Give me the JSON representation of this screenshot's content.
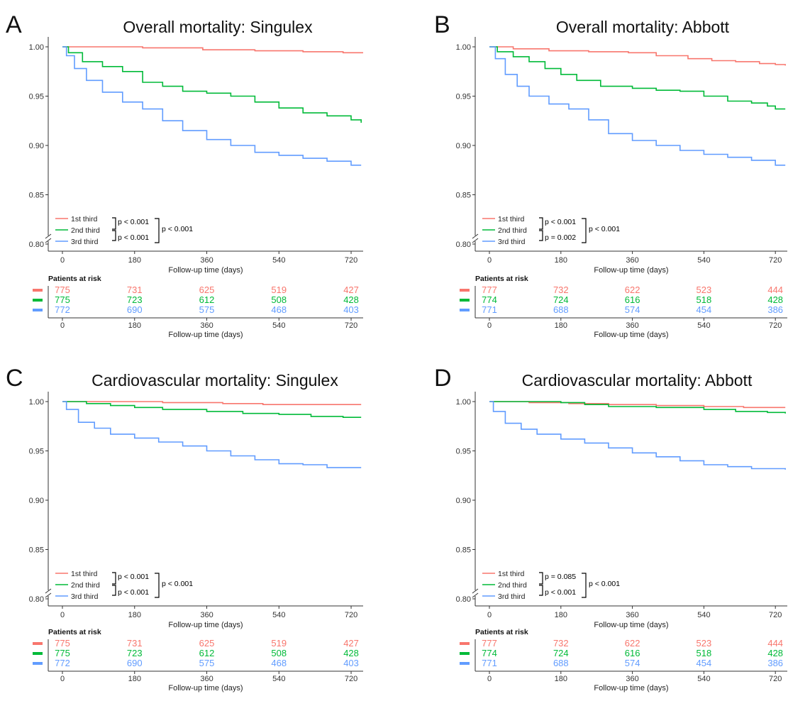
{
  "colors": {
    "first": "#F8766D",
    "second": "#00BA38",
    "third": "#619CFF",
    "axis": "#333333",
    "bracket": "#000000"
  },
  "common": {
    "xlabel": "Follow-up time (days)",
    "risk_title": "Patients at risk",
    "legend": [
      "1st third",
      "2nd third",
      "3rd third"
    ],
    "x_ticks": [
      "0",
      "180",
      "360",
      "540",
      "720"
    ],
    "y_ticks": [
      "1.00",
      "0.95",
      "0.90",
      "0.85",
      "0.80"
    ]
  },
  "chart_data": [
    {
      "panel": "A",
      "title": "Overall mortality: Singulex",
      "type": "line",
      "xlabel": "Follow-up time (days)",
      "xlim": [
        0,
        750
      ],
      "ylim": [
        0.8,
        1.0
      ],
      "y_axis_break": true,
      "p_values": {
        "first_vs_second": "p < 0.001",
        "second_vs_third": "p < 0.001",
        "first_vs_third": "p < 0.001"
      },
      "series": [
        {
          "name": "1st third",
          "color": "#F8766D",
          "points": [
            [
              0,
              1.0
            ],
            [
              80,
              1.0
            ],
            [
              200,
              0.999
            ],
            [
              350,
              0.997
            ],
            [
              480,
              0.996
            ],
            [
              600,
              0.995
            ],
            [
              700,
              0.994
            ],
            [
              750,
              0.994
            ]
          ]
        },
        {
          "name": "2nd third",
          "color": "#00BA38",
          "points": [
            [
              0,
              1.0
            ],
            [
              15,
              0.994
            ],
            [
              50,
              0.985
            ],
            [
              100,
              0.98
            ],
            [
              150,
              0.975
            ],
            [
              200,
              0.964
            ],
            [
              250,
              0.96
            ],
            [
              300,
              0.955
            ],
            [
              360,
              0.953
            ],
            [
              420,
              0.95
            ],
            [
              480,
              0.944
            ],
            [
              540,
              0.938
            ],
            [
              600,
              0.933
            ],
            [
              660,
              0.93
            ],
            [
              720,
              0.926
            ],
            [
              745,
              0.923
            ]
          ]
        },
        {
          "name": "3rd third",
          "color": "#619CFF",
          "points": [
            [
              0,
              1.0
            ],
            [
              10,
              0.991
            ],
            [
              30,
              0.978
            ],
            [
              60,
              0.966
            ],
            [
              100,
              0.954
            ],
            [
              150,
              0.944
            ],
            [
              200,
              0.937
            ],
            [
              250,
              0.925
            ],
            [
              300,
              0.915
            ],
            [
              360,
              0.906
            ],
            [
              420,
              0.9
            ],
            [
              480,
              0.893
            ],
            [
              540,
              0.89
            ],
            [
              600,
              0.887
            ],
            [
              660,
              0.884
            ],
            [
              720,
              0.88
            ],
            [
              745,
              0.88
            ]
          ]
        }
      ],
      "risk_table": [
        {
          "name": "1st third",
          "values": [
            775,
            731,
            625,
            519,
            427
          ]
        },
        {
          "name": "2nd third",
          "values": [
            775,
            723,
            612,
            508,
            428
          ]
        },
        {
          "name": "3rd third",
          "values": [
            772,
            690,
            575,
            468,
            403
          ]
        }
      ]
    },
    {
      "panel": "B",
      "title": "Overall mortality: Abbott",
      "type": "line",
      "xlabel": "Follow-up time (days)",
      "xlim": [
        0,
        750
      ],
      "ylim": [
        0.8,
        1.0
      ],
      "y_axis_break": true,
      "p_values": {
        "first_vs_second": "p < 0.001",
        "second_vs_third": "p = 0.002",
        "first_vs_third": "p < 0.001"
      },
      "series": [
        {
          "name": "1st third",
          "color": "#F8766D",
          "points": [
            [
              0,
              1.0
            ],
            [
              60,
              0.998
            ],
            [
              150,
              0.996
            ],
            [
              250,
              0.995
            ],
            [
              350,
              0.994
            ],
            [
              420,
              0.991
            ],
            [
              500,
              0.988
            ],
            [
              560,
              0.986
            ],
            [
              620,
              0.985
            ],
            [
              680,
              0.983
            ],
            [
              720,
              0.982
            ],
            [
              745,
              0.981
            ]
          ]
        },
        {
          "name": "2nd third",
          "color": "#00BA38",
          "points": [
            [
              0,
              1.0
            ],
            [
              20,
              0.995
            ],
            [
              60,
              0.99
            ],
            [
              100,
              0.985
            ],
            [
              140,
              0.978
            ],
            [
              180,
              0.972
            ],
            [
              220,
              0.966
            ],
            [
              280,
              0.96
            ],
            [
              360,
              0.958
            ],
            [
              420,
              0.956
            ],
            [
              480,
              0.955
            ],
            [
              540,
              0.95
            ],
            [
              600,
              0.945
            ],
            [
              660,
              0.943
            ],
            [
              700,
              0.94
            ],
            [
              720,
              0.937
            ],
            [
              745,
              0.937
            ]
          ]
        },
        {
          "name": "3rd third",
          "color": "#619CFF",
          "points": [
            [
              0,
              1.0
            ],
            [
              15,
              0.988
            ],
            [
              40,
              0.972
            ],
            [
              70,
              0.96
            ],
            [
              100,
              0.95
            ],
            [
              150,
              0.942
            ],
            [
              200,
              0.937
            ],
            [
              250,
              0.926
            ],
            [
              300,
              0.912
            ],
            [
              360,
              0.905
            ],
            [
              420,
              0.9
            ],
            [
              480,
              0.895
            ],
            [
              540,
              0.891
            ],
            [
              600,
              0.888
            ],
            [
              660,
              0.885
            ],
            [
              720,
              0.88
            ],
            [
              745,
              0.88
            ]
          ]
        }
      ],
      "risk_table": [
        {
          "name": "1st third",
          "values": [
            777,
            732,
            622,
            523,
            444
          ]
        },
        {
          "name": "2nd third",
          "values": [
            774,
            724,
            616,
            518,
            428
          ]
        },
        {
          "name": "3rd third",
          "values": [
            771,
            688,
            574,
            454,
            386
          ]
        }
      ]
    },
    {
      "panel": "C",
      "title": "Cardiovascular mortality: Singulex",
      "type": "line",
      "xlabel": "Follow-up time (days)",
      "xlim": [
        0,
        750
      ],
      "ylim": [
        0.8,
        1.0
      ],
      "y_axis_break": true,
      "p_values": {
        "first_vs_second": "p < 0.001",
        "second_vs_third": "p < 0.001",
        "first_vs_third": "p < 0.001"
      },
      "series": [
        {
          "name": "1st third",
          "color": "#F8766D",
          "points": [
            [
              0,
              1.0
            ],
            [
              100,
              1.0
            ],
            [
              250,
              0.999
            ],
            [
              400,
              0.998
            ],
            [
              500,
              0.997
            ],
            [
              600,
              0.997
            ],
            [
              745,
              0.997
            ]
          ]
        },
        {
          "name": "2nd third",
          "color": "#00BA38",
          "points": [
            [
              0,
              1.0
            ],
            [
              60,
              0.998
            ],
            [
              120,
              0.996
            ],
            [
              180,
              0.994
            ],
            [
              250,
              0.992
            ],
            [
              360,
              0.99
            ],
            [
              450,
              0.988
            ],
            [
              540,
              0.987
            ],
            [
              620,
              0.985
            ],
            [
              700,
              0.984
            ],
            [
              745,
              0.984
            ]
          ]
        },
        {
          "name": "3rd third",
          "color": "#619CFF",
          "points": [
            [
              0,
              1.0
            ],
            [
              10,
              0.992
            ],
            [
              40,
              0.979
            ],
            [
              80,
              0.973
            ],
            [
              120,
              0.967
            ],
            [
              180,
              0.963
            ],
            [
              240,
              0.959
            ],
            [
              300,
              0.955
            ],
            [
              360,
              0.95
            ],
            [
              420,
              0.945
            ],
            [
              480,
              0.941
            ],
            [
              540,
              0.937
            ],
            [
              600,
              0.936
            ],
            [
              660,
              0.933
            ],
            [
              745,
              0.933
            ]
          ]
        }
      ],
      "risk_table": [
        {
          "name": "1st third",
          "values": [
            775,
            731,
            625,
            519,
            427
          ]
        },
        {
          "name": "2nd third",
          "values": [
            775,
            723,
            612,
            508,
            428
          ]
        },
        {
          "name": "3rd third",
          "values": [
            772,
            690,
            575,
            468,
            403
          ]
        }
      ]
    },
    {
      "panel": "D",
      "title": "Cardiovascular mortality: Abbott",
      "type": "line",
      "xlabel": "Follow-up time (days)",
      "xlim": [
        0,
        750
      ],
      "ylim": [
        0.8,
        1.0
      ],
      "y_axis_break": true,
      "p_values": {
        "first_vs_second": "p = 0.085",
        "second_vs_third": "p < 0.001",
        "first_vs_third": "p < 0.001"
      },
      "series": [
        {
          "name": "1st third",
          "color": "#F8766D",
          "points": [
            [
              0,
              1.0
            ],
            [
              100,
              0.999
            ],
            [
              200,
              0.998
            ],
            [
              300,
              0.997
            ],
            [
              420,
              0.996
            ],
            [
              540,
              0.995
            ],
            [
              640,
              0.994
            ],
            [
              745,
              0.994
            ]
          ]
        },
        {
          "name": "2nd third",
          "color": "#00BA38",
          "points": [
            [
              0,
              1.0
            ],
            [
              100,
              1.0
            ],
            [
              180,
              0.999
            ],
            [
              240,
              0.997
            ],
            [
              300,
              0.995
            ],
            [
              420,
              0.994
            ],
            [
              540,
              0.992
            ],
            [
              620,
              0.99
            ],
            [
              700,
              0.989
            ],
            [
              745,
              0.988
            ]
          ]
        },
        {
          "name": "3rd third",
          "color": "#619CFF",
          "points": [
            [
              0,
              1.0
            ],
            [
              10,
              0.99
            ],
            [
              40,
              0.978
            ],
            [
              80,
              0.972
            ],
            [
              120,
              0.967
            ],
            [
              180,
              0.962
            ],
            [
              240,
              0.958
            ],
            [
              300,
              0.953
            ],
            [
              360,
              0.948
            ],
            [
              420,
              0.944
            ],
            [
              480,
              0.94
            ],
            [
              540,
              0.936
            ],
            [
              600,
              0.934
            ],
            [
              660,
              0.932
            ],
            [
              745,
              0.931
            ]
          ]
        }
      ],
      "risk_table": [
        {
          "name": "1st third",
          "values": [
            777,
            732,
            622,
            523,
            444
          ]
        },
        {
          "name": "2nd third",
          "values": [
            774,
            724,
            616,
            518,
            428
          ]
        },
        {
          "name": "3rd third",
          "values": [
            771,
            688,
            574,
            454,
            386
          ]
        }
      ]
    }
  ]
}
